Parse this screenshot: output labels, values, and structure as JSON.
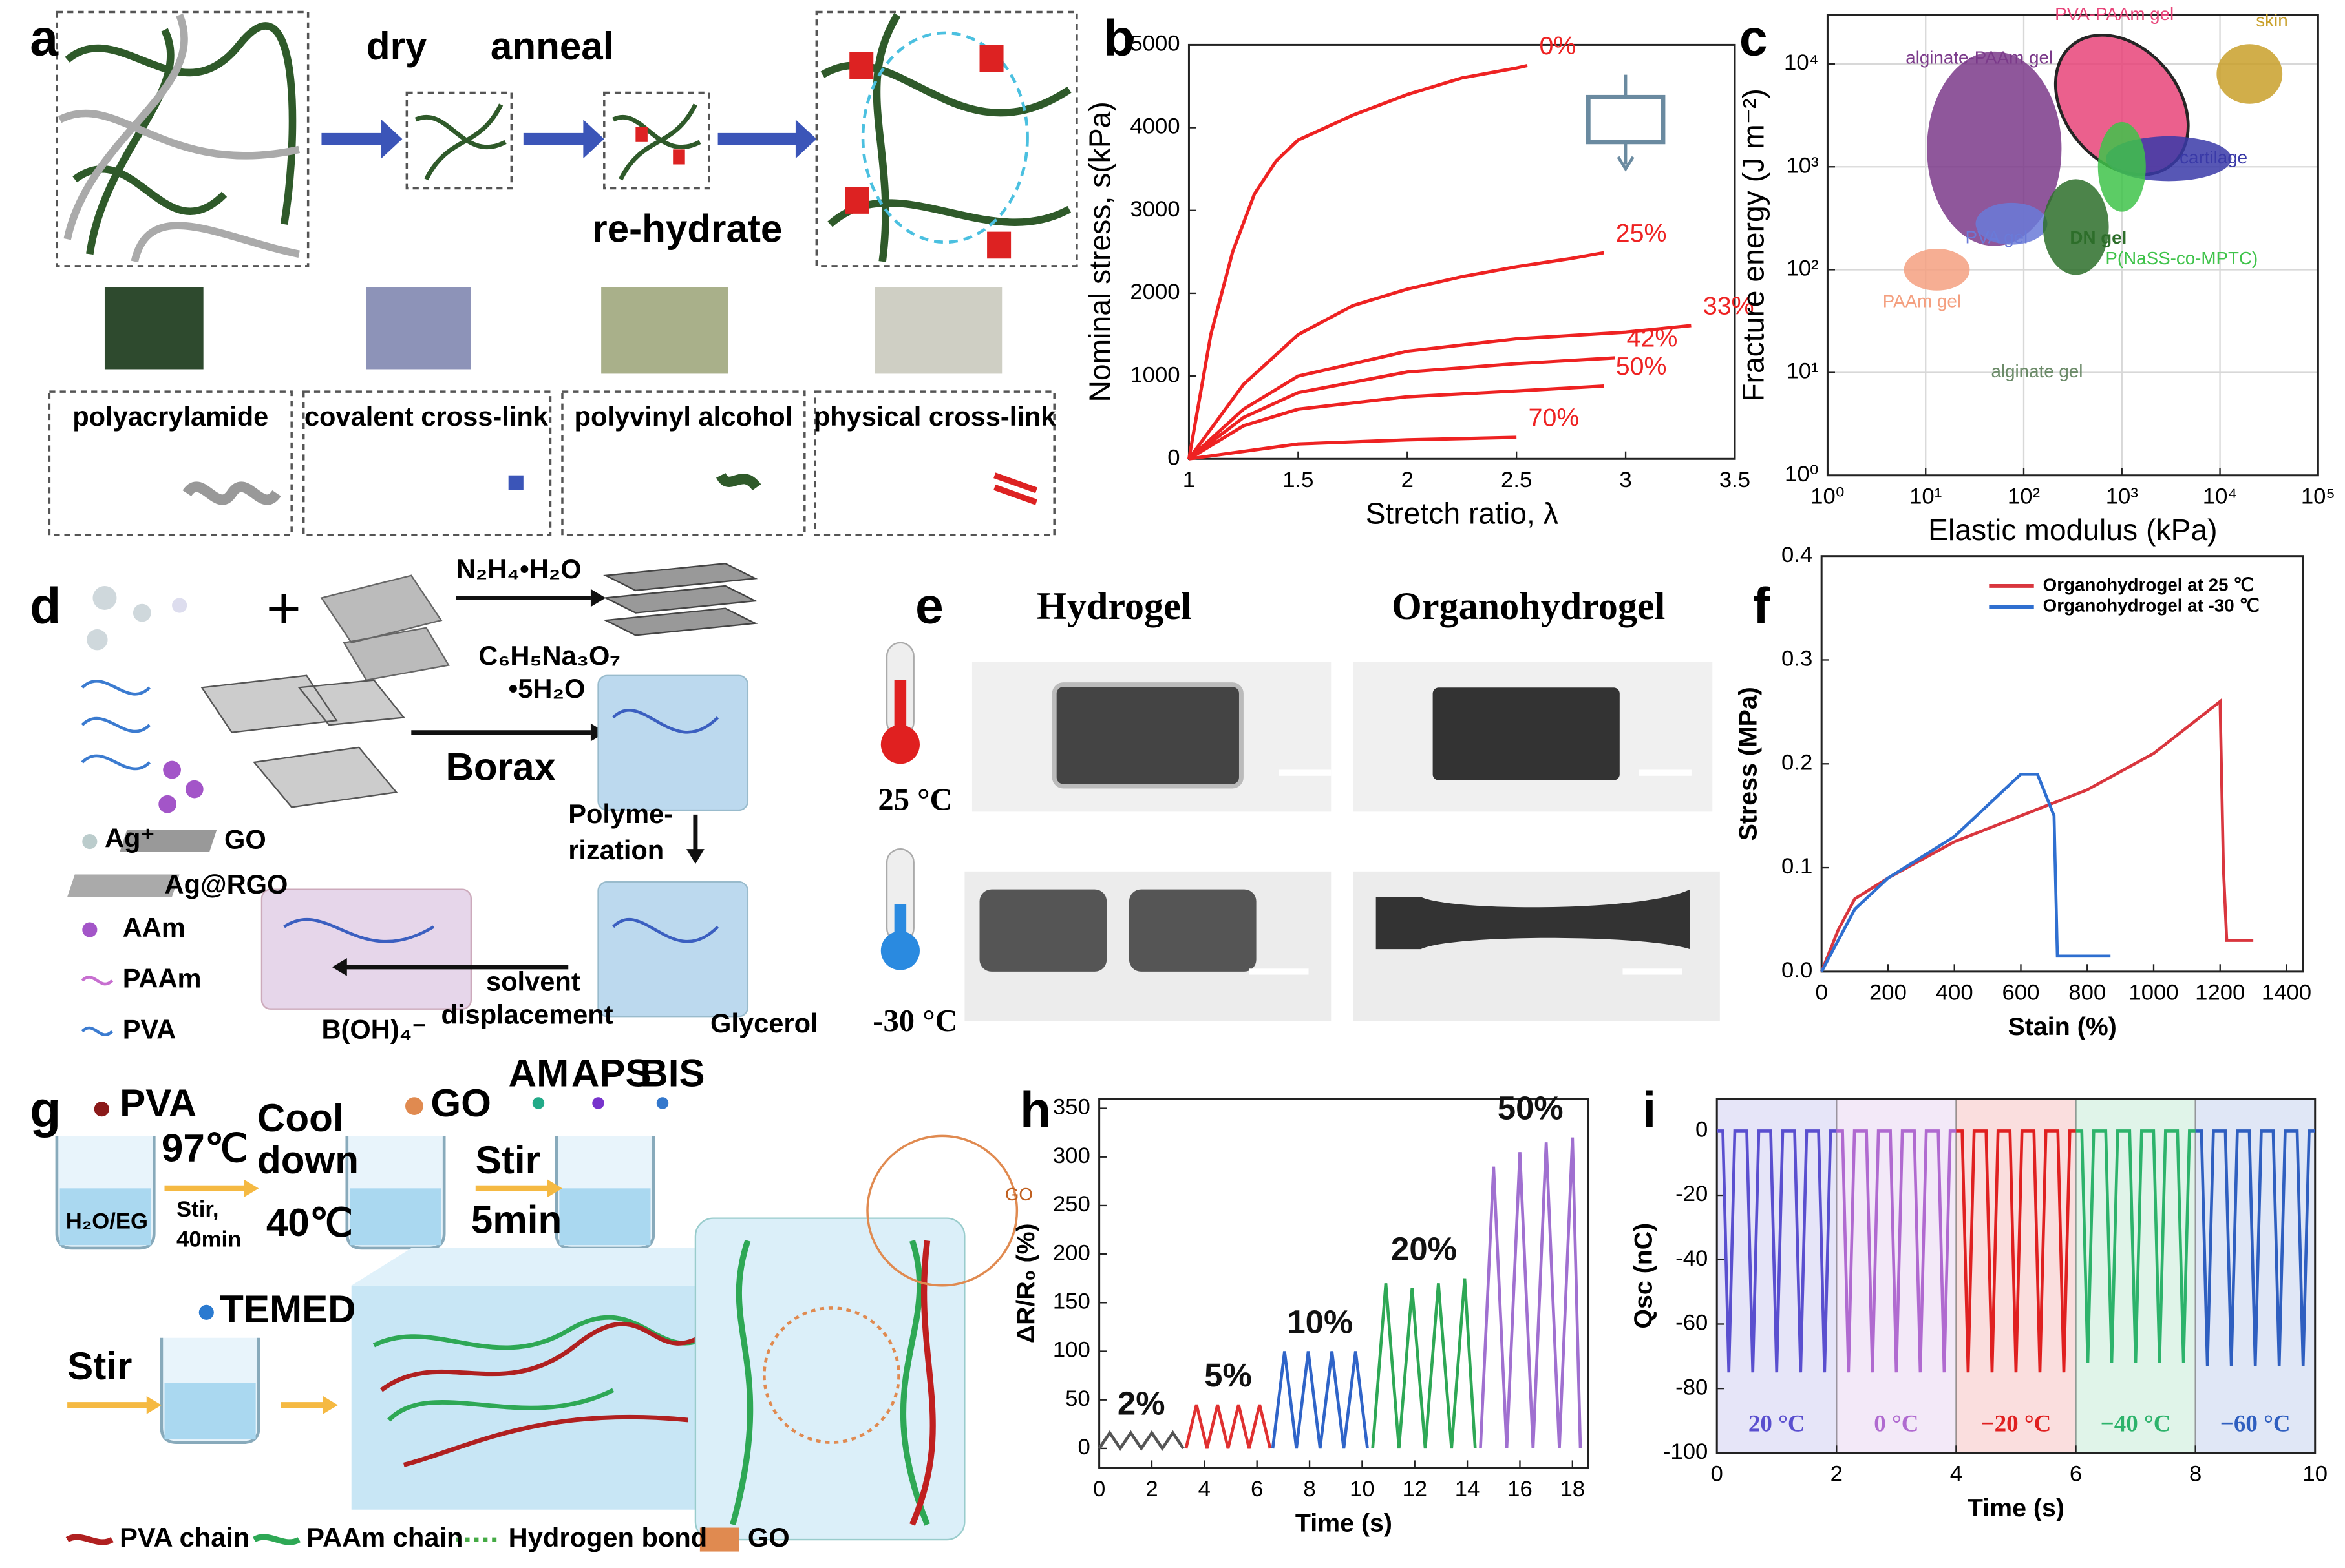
{
  "panel_labels": [
    "a",
    "b",
    "c",
    "d",
    "e",
    "f",
    "g",
    "h",
    "i"
  ],
  "panel_a": {
    "steps": [
      "dry",
      "anneal",
      "re-hydrate"
    ],
    "legend": [
      "polyacrylamide",
      "covalent cross-link",
      "polyvinyl alcohol",
      "physical cross-link"
    ]
  },
  "panel_d": {
    "reagents": [
      "N₂H₄•H₂O",
      "C₆H₅Na₃O₇",
      "•5H₂O",
      "Borax",
      "Polyme-",
      "rization",
      "solvent",
      "displacement",
      "Glycerol"
    ],
    "legend": [
      "Ag⁺",
      "GO",
      "Ag@RGO",
      "AAm",
      "PAAm",
      "PVA",
      "B(OH)₄⁻"
    ]
  },
  "panel_e": {
    "columns": [
      "Hydrogel",
      "Organohydrogel"
    ],
    "rows": [
      "25 °C",
      "-30 °C"
    ]
  },
  "panel_g": {
    "steps": [
      "PVA",
      "97℃",
      "Stir,",
      "40min",
      "H₂O/EG",
      "Cool",
      "down",
      "40℃",
      "GO",
      "Stir",
      "5min",
      "AM",
      "APS",
      "BIS",
      "GO",
      "TEMED",
      "Stir"
    ],
    "legend": [
      "PVA chain",
      "PAAm chain",
      "Hydrogen bond",
      "GO"
    ]
  },
  "chart_data": [
    {
      "type": "line",
      "xlabel": "Stretch ratio, λ",
      "ylabel": "Nominal stress, s(kPa)",
      "xlim": [
        1,
        3.5
      ],
      "xticks": [
        1,
        1.5,
        2,
        2.5,
        3,
        3.5
      ],
      "ylim": [
        0,
        5000
      ],
      "yticks": [
        0,
        1000,
        2000,
        3000,
        4000,
        5000
      ],
      "series": [
        {
          "name": "0%",
          "color": "#ee2222",
          "x": [
            1,
            1.1,
            1.2,
            1.3,
            1.4,
            1.5,
            1.75,
            2,
            2.25,
            2.5,
            2.55
          ],
          "values": [
            0,
            1500,
            2500,
            3200,
            3600,
            3850,
            4150,
            4400,
            4600,
            4720,
            4750
          ]
        },
        {
          "name": "25%",
          "color": "#ee2222",
          "x": [
            1,
            1.25,
            1.5,
            1.75,
            2,
            2.25,
            2.5,
            2.75,
            2.9
          ],
          "values": [
            0,
            900,
            1500,
            1850,
            2050,
            2200,
            2320,
            2420,
            2490
          ]
        },
        {
          "name": "33%",
          "color": "#ee2222",
          "x": [
            1,
            1.25,
            1.5,
            2,
            2.5,
            3,
            3.3
          ],
          "values": [
            0,
            600,
            1000,
            1300,
            1450,
            1530,
            1610
          ]
        },
        {
          "name": "42%",
          "color": "#ee2222",
          "x": [
            1,
            1.25,
            1.5,
            2,
            2.5,
            2.95
          ],
          "values": [
            0,
            500,
            800,
            1050,
            1150,
            1220
          ]
        },
        {
          "name": "50%",
          "color": "#ee2222",
          "x": [
            1,
            1.25,
            1.5,
            2,
            2.5,
            2.9
          ],
          "values": [
            0,
            400,
            600,
            750,
            820,
            880
          ]
        },
        {
          "name": "70%",
          "color": "#ee2222",
          "x": [
            1,
            1.5,
            2,
            2.5
          ],
          "values": [
            0,
            180,
            230,
            260
          ]
        }
      ]
    },
    {
      "type": "scatter",
      "xlabel": "Elastic modulus (kPa)",
      "ylabel": "Fracture energy (J m⁻²)",
      "xlog": true,
      "ylog": true,
      "grid": true,
      "xlim": [
        1,
        100000
      ],
      "xticks": [
        {
          "value": 1,
          "label": "10⁰"
        },
        {
          "value": 10,
          "label": "10¹"
        },
        {
          "value": 100,
          "label": "10²"
        },
        {
          "value": 1000,
          "label": "10³"
        },
        {
          "value": 10000,
          "label": "10⁴"
        },
        {
          "value": 100000,
          "label": "10⁵"
        }
      ],
      "ylim": [
        1,
        30000
      ],
      "yticks": [
        {
          "value": 1,
          "label": "10⁰"
        },
        {
          "value": 10,
          "label": "10¹"
        },
        {
          "value": 100,
          "label": "10²"
        },
        {
          "value": 1000,
          "label": "10³"
        },
        {
          "value": 10000,
          "label": "10⁴"
        }
      ],
      "series": [
        {
          "name": "alginate gel",
          "color": "#6b8a68",
          "x": [
            63
          ],
          "values": [
            16
          ]
        },
        {
          "name": "PAAm gel",
          "color": "#f4a080",
          "x": [
            13
          ],
          "values": [
            100
          ]
        },
        {
          "name": "alginate-PAAm gel",
          "color": "#7b3a8a",
          "x": [
            50
          ],
          "values": [
            1500
          ]
        },
        {
          "name": "PVA gel",
          "color": "#6a7ad8",
          "x": [
            75
          ],
          "values": [
            280
          ]
        },
        {
          "name": "DN gel",
          "color": "#2d6e2a",
          "x": [
            340
          ],
          "values": [
            260
          ]
        },
        {
          "name": "PVA-PAAm gel",
          "color": "#e8457a",
          "x": [
            1000
          ],
          "values": [
            4000
          ]
        },
        {
          "name": "cartilage",
          "color": "#3a3aa8",
          "x": [
            3000
          ],
          "values": [
            1200
          ]
        },
        {
          "name": "P(NaSS-co-MPTC)",
          "color": "#3fc34a",
          "x": [
            1000
          ],
          "values": [
            1000
          ]
        },
        {
          "name": "skin",
          "color": "#c9a02a",
          "x": [
            20000
          ],
          "values": [
            8000
          ]
        }
      ]
    },
    {
      "type": "line",
      "xlabel": "Stain (%)",
      "ylabel": "Stress (MPa)",
      "legend": "upper right",
      "xlim": [
        0,
        1450
      ],
      "xticks": [
        0,
        200,
        400,
        600,
        800,
        1000,
        1200,
        1400
      ],
      "ylim": [
        0,
        0.4
      ],
      "yticks": [
        {
          "value": 0,
          "label": "0.0"
        },
        0.1,
        0.2,
        0.3,
        0.4
      ],
      "series": [
        {
          "name": "Organohydrogel at 25 ℃",
          "color": "#d9363e",
          "x": [
            0,
            50,
            100,
            200,
            400,
            600,
            800,
            1000,
            1200,
            1210,
            1220,
            1300
          ],
          "values": [
            0,
            0.04,
            0.07,
            0.09,
            0.125,
            0.15,
            0.175,
            0.21,
            0.26,
            0.1,
            0.03,
            0.03
          ]
        },
        {
          "name": "Organohydrogel at -30 ℃",
          "color": "#2f6fd0",
          "x": [
            0,
            50,
            100,
            200,
            300,
            400,
            500,
            600,
            650,
            700,
            710,
            750,
            870
          ],
          "values": [
            0,
            0.03,
            0.06,
            0.09,
            0.11,
            0.13,
            0.16,
            0.19,
            0.19,
            0.15,
            0.015,
            0.015,
            0.015
          ]
        }
      ]
    },
    {
      "type": "line",
      "xlabel": "Time (s)",
      "ylabel": "ΔR/R₀ (%)",
      "xlim": [
        0,
        18.6
      ],
      "xticks": [
        0,
        2,
        4,
        6,
        8,
        10,
        12,
        14,
        16,
        18
      ],
      "ylim": [
        -20,
        360
      ],
      "yticks": [
        0,
        50,
        100,
        150,
        200,
        250,
        300,
        350
      ],
      "series": [
        {
          "name": "2%",
          "color": "#555555",
          "x": [
            0,
            0.4,
            0.8,
            1.2,
            1.6,
            2.0,
            2.4,
            2.8,
            3.2
          ],
          "values": [
            0,
            16,
            0,
            16,
            0,
            16,
            0,
            16,
            0
          ]
        },
        {
          "name": "5%",
          "color": "#e03030",
          "x": [
            3.3,
            3.7,
            4.1,
            4.5,
            4.9,
            5.3,
            5.7,
            6.1,
            6.5
          ],
          "values": [
            0,
            45,
            0,
            45,
            0,
            45,
            0,
            45,
            0
          ]
        },
        {
          "name": "10%",
          "color": "#2f64c8",
          "x": [
            6.6,
            7.05,
            7.5,
            7.95,
            8.4,
            8.85,
            9.3,
            9.75,
            10.2
          ],
          "values": [
            0,
            100,
            0,
            100,
            0,
            100,
            0,
            100,
            0
          ]
        },
        {
          "name": "20%",
          "color": "#2ea855",
          "x": [
            10.4,
            10.9,
            11.4,
            11.9,
            12.4,
            12.9,
            13.4,
            13.9,
            14.3
          ],
          "values": [
            0,
            170,
            0,
            165,
            0,
            170,
            0,
            175,
            0
          ]
        },
        {
          "name": "50%",
          "color": "#a070d0",
          "x": [
            14.5,
            15,
            15.5,
            16,
            16.5,
            17,
            17.5,
            18,
            18.3
          ],
          "values": [
            0,
            290,
            0,
            305,
            0,
            315,
            0,
            320,
            0
          ]
        }
      ]
    },
    {
      "type": "line",
      "xlabel": "Time (s)",
      "ylabel": "Qsc (nC)",
      "xlim": [
        0,
        10
      ],
      "xticks": [
        0,
        2,
        4,
        6,
        8,
        10
      ],
      "ylim": [
        -100,
        10
      ],
      "yticks": [
        -100,
        -80,
        -60,
        -40,
        -20,
        0
      ],
      "series": [
        {
          "name": "20 °C",
          "color": "#5a4fcf",
          "x": [
            0,
            0.1,
            0.2,
            0.3,
            0.5,
            0.6,
            0.7,
            0.9,
            1.0,
            1.1,
            1.3,
            1.4,
            1.5,
            1.7,
            1.8,
            1.9,
            2
          ],
          "values": [
            0,
            0,
            -75,
            0,
            0,
            -75,
            0,
            0,
            -75,
            0,
            0,
            -75,
            0,
            0,
            -75,
            0,
            0
          ]
        },
        {
          "name": "0 °C",
          "color": "#b06ad0",
          "x": [
            2,
            2.1,
            2.2,
            2.3,
            2.5,
            2.6,
            2.7,
            2.9,
            3,
            3.1,
            3.3,
            3.4,
            3.5,
            3.7,
            3.8,
            3.9,
            4
          ],
          "values": [
            0,
            0,
            -75,
            0,
            0,
            -75,
            0,
            0,
            -75,
            0,
            0,
            -75,
            0,
            0,
            -75,
            0,
            0
          ]
        },
        {
          "name": "−20 °C",
          "color": "#e02020",
          "x": [
            4,
            4.1,
            4.2,
            4.3,
            4.5,
            4.6,
            4.7,
            4.9,
            5,
            5.1,
            5.3,
            5.4,
            5.5,
            5.7,
            5.8,
            5.9,
            6
          ],
          "values": [
            0,
            0,
            -75,
            0,
            0,
            -75,
            0,
            0,
            -75,
            0,
            0,
            -75,
            0,
            0,
            -75,
            0,
            0
          ]
        },
        {
          "name": "−40 °C",
          "color": "#2db36b",
          "x": [
            6,
            6.1,
            6.2,
            6.3,
            6.5,
            6.6,
            6.7,
            6.9,
            7,
            7.1,
            7.3,
            7.4,
            7.5,
            7.7,
            7.8,
            7.9,
            8
          ],
          "values": [
            0,
            0,
            -72,
            0,
            0,
            -72,
            0,
            0,
            -72,
            0,
            0,
            -72,
            0,
            0,
            -72,
            0,
            0
          ]
        },
        {
          "name": "−60 °C",
          "color": "#2f5fc0",
          "x": [
            8,
            8.1,
            8.2,
            8.3,
            8.5,
            8.6,
            8.7,
            8.9,
            9,
            9.1,
            9.3,
            9.4,
            9.5,
            9.7,
            9.8,
            9.9,
            10
          ],
          "values": [
            0,
            0,
            -73,
            0,
            0,
            -73,
            0,
            0,
            -73,
            0,
            0,
            -73,
            0,
            0,
            -73,
            0,
            0
          ]
        }
      ]
    }
  ]
}
